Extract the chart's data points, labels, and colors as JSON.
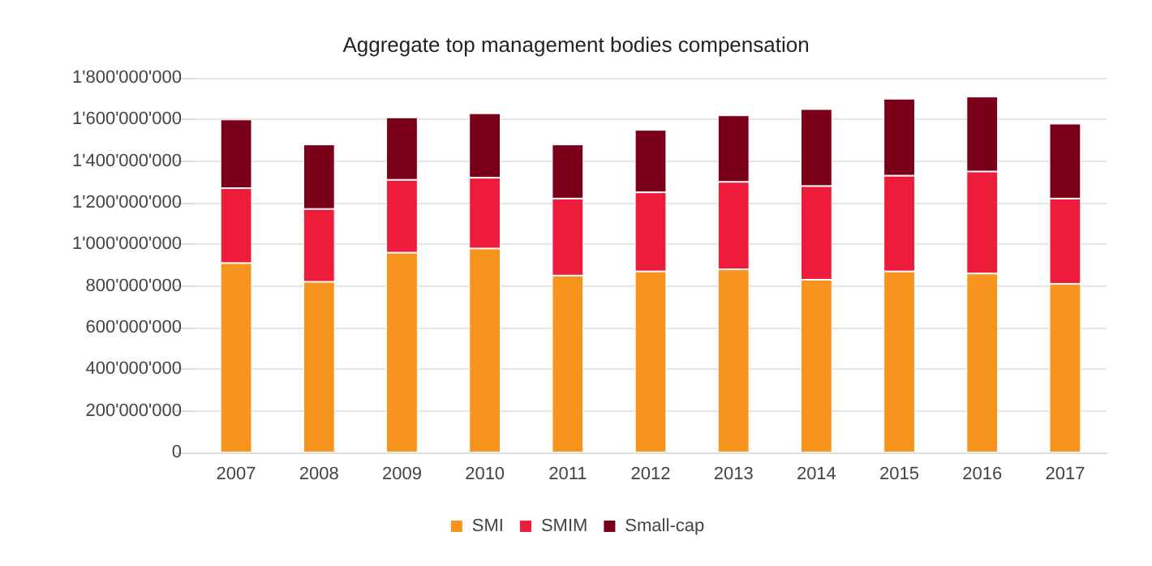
{
  "chart_data": {
    "type": "bar",
    "title": "Aggregate top management bodies compensation",
    "categories": [
      "2007",
      "2008",
      "2009",
      "2010",
      "2011",
      "2012",
      "2013",
      "2014",
      "2015",
      "2016",
      "2017"
    ],
    "stacked": true,
    "series": [
      {
        "name": "SMI",
        "color": "#f7941d",
        "values": [
          910000000,
          820000000,
          960000000,
          980000000,
          850000000,
          870000000,
          880000000,
          830000000,
          870000000,
          860000000,
          810000000
        ]
      },
      {
        "name": "SMIM",
        "color": "#ec1c3a",
        "values": [
          360000000,
          350000000,
          350000000,
          340000000,
          370000000,
          380000000,
          420000000,
          450000000,
          460000000,
          490000000,
          410000000
        ]
      },
      {
        "name": "Small-cap",
        "color": "#7a0019",
        "values": [
          330000000,
          310000000,
          300000000,
          310000000,
          260000000,
          300000000,
          320000000,
          370000000,
          370000000,
          360000000,
          360000000
        ]
      }
    ],
    "ylim": [
      0,
      1800000000
    ],
    "yticks": [
      0,
      {
        "value": 200000000,
        "label": "200'000'000"
      },
      {
        "value": 400000000,
        "label": "400'000'000"
      },
      {
        "value": 600000000,
        "label": "600'000'000"
      },
      {
        "value": 800000000,
        "label": "800'000'000"
      },
      {
        "value": 1000000000,
        "label": "1'000'000'000"
      },
      {
        "value": 1200000000,
        "label": "1'200'000'000"
      },
      {
        "value": 1400000000,
        "label": "1'400'000'000"
      },
      {
        "value": 1600000000,
        "label": "1'600'000'000"
      },
      {
        "value": 1800000000,
        "label": "1'800'000'000"
      }
    ],
    "grid": "y",
    "legend": "bottom"
  }
}
